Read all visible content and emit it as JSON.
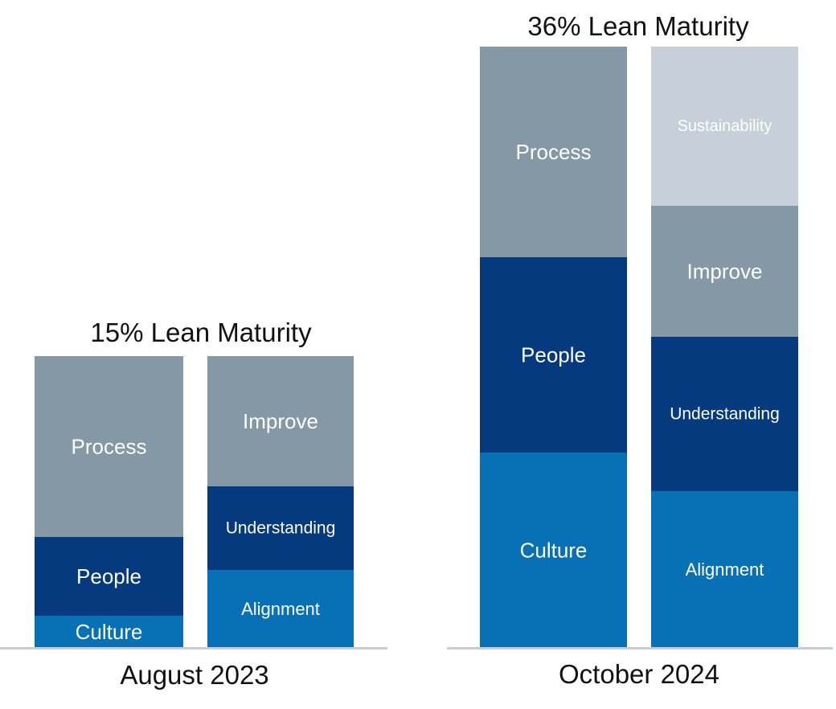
{
  "chart_data": {
    "type": "bar",
    "stacked": true,
    "value_unit": "relative segment size (no axis printed)",
    "colors": {
      "Culture": "#0871b6",
      "Alignment": "#0871b6",
      "People": "#053a7e",
      "Understanding": "#053a7e",
      "Process": "#8598a5",
      "Improve": "#8598a5",
      "Sustainability": "#c7d0d8",
      "baseline": "#c8cdd2"
    },
    "groups": [
      {
        "title": "15% Lean Maturity",
        "date": "August 2023",
        "bars": [
          {
            "segments": [
              {
                "label": "Culture",
                "value": 40
              },
              {
                "label": "People",
                "value": 98
              },
              {
                "label": "Process",
                "value": 225
              }
            ]
          },
          {
            "segments": [
              {
                "label": "Alignment",
                "value": 97
              },
              {
                "label": "Understanding",
                "value": 104
              },
              {
                "label": "Improve",
                "value": 162
              }
            ]
          }
        ]
      },
      {
        "title": "36% Lean Maturity",
        "date": "October 2024",
        "bars": [
          {
            "segments": [
              {
                "label": "Culture",
                "value": 243
              },
              {
                "label": "People",
                "value": 243
              },
              {
                "label": "Process",
                "value": 262
              }
            ]
          },
          {
            "segments": [
              {
                "label": "Alignment",
                "value": 195
              },
              {
                "label": "Understanding",
                "value": 192
              },
              {
                "label": "Improve",
                "value": 163
              },
              {
                "label": "Sustainability",
                "value": 198
              }
            ]
          }
        ]
      }
    ]
  }
}
